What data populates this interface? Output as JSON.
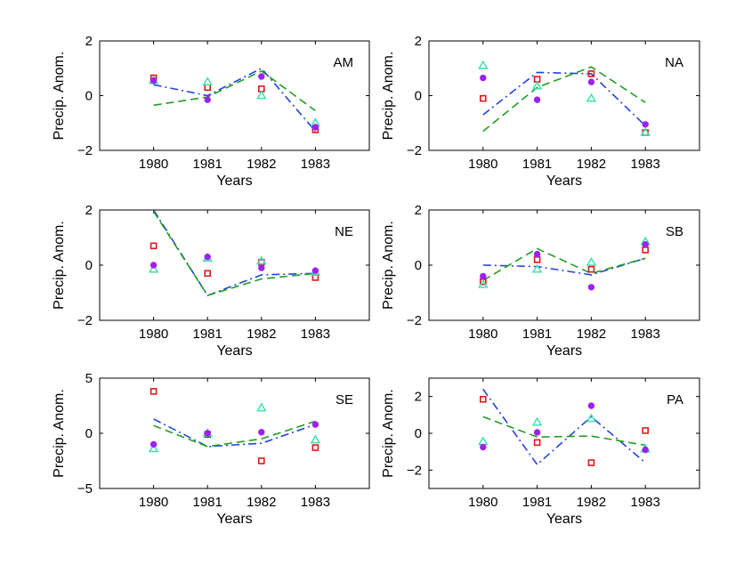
{
  "colors": {
    "square": "#e0181b",
    "triangle": "#40e0b0",
    "circle": "#a020f0",
    "dashdot": "#2244dd",
    "dashed": "#20a020"
  },
  "chart_data": [
    {
      "type": "scatter",
      "region": "AM",
      "xlabel": "Years",
      "ylabel": "Precip. Anom.",
      "xlim": [
        1979.0,
        1984.0
      ],
      "ylim": [
        -2,
        2
      ],
      "xticks": [
        1980,
        1981,
        1982,
        1983
      ],
      "yticks": [
        -2,
        0,
        2
      ],
      "series": [
        {
          "marker": "square",
          "x": [
            1980,
            1981,
            1982,
            1983
          ],
          "values": [
            0.65,
            0.3,
            0.25,
            -1.25
          ]
        },
        {
          "marker": "triangle",
          "x": [
            1980,
            1981,
            1982,
            1983
          ],
          "values": [
            0.55,
            0.5,
            0.0,
            -1.0
          ]
        },
        {
          "marker": "circle",
          "x": [
            1980,
            1981,
            1982,
            1983
          ],
          "values": [
            0.55,
            -0.15,
            0.7,
            -1.15
          ]
        },
        {
          "line": "dashdot",
          "x": [
            1980,
            1981,
            1982,
            1983
          ],
          "values": [
            0.4,
            0.0,
            1.0,
            -1.3
          ]
        },
        {
          "line": "dashed",
          "x": [
            1980,
            1981,
            1982,
            1983
          ],
          "values": [
            -0.35,
            -0.05,
            0.9,
            -0.55
          ]
        }
      ]
    },
    {
      "type": "scatter",
      "region": "NA",
      "xlabel": "Years",
      "ylabel": "Precip. Anom.",
      "xlim": [
        1979.0,
        1984.0
      ],
      "ylim": [
        -2,
        2
      ],
      "xticks": [
        1980,
        1981,
        1982,
        1983
      ],
      "yticks": [
        -2,
        0,
        2
      ],
      "series": [
        {
          "marker": "square",
          "x": [
            1980,
            1981,
            1982,
            1983
          ],
          "values": [
            -0.1,
            0.6,
            0.8,
            -1.35
          ]
        },
        {
          "marker": "triangle",
          "x": [
            1980,
            1981,
            1982,
            1983
          ],
          "values": [
            1.1,
            0.35,
            -0.1,
            -1.35
          ]
        },
        {
          "marker": "circle",
          "x": [
            1980,
            1981,
            1982,
            1983
          ],
          "values": [
            0.65,
            -0.15,
            0.5,
            -1.05
          ]
        },
        {
          "line": "dashdot",
          "x": [
            1980,
            1981,
            1982,
            1983
          ],
          "values": [
            -0.7,
            0.85,
            0.8,
            -1.1
          ]
        },
        {
          "line": "dashed",
          "x": [
            1980,
            1981,
            1982,
            1983
          ],
          "values": [
            -1.3,
            0.3,
            1.05,
            -0.25
          ]
        }
      ]
    },
    {
      "type": "scatter",
      "region": "NE",
      "xlabel": "Years",
      "ylabel": "Precip. Anom.",
      "xlim": [
        1979.0,
        1984.0
      ],
      "ylim": [
        -2,
        2
      ],
      "xticks": [
        1980,
        1981,
        1982,
        1983
      ],
      "yticks": [
        -2,
        0,
        2
      ],
      "series": [
        {
          "marker": "square",
          "x": [
            1980,
            1981,
            1982,
            1983
          ],
          "values": [
            0.7,
            -0.3,
            0.1,
            -0.45
          ]
        },
        {
          "marker": "triangle",
          "x": [
            1980,
            1981,
            1982,
            1983
          ],
          "values": [
            -0.15,
            0.25,
            0.15,
            -0.25
          ]
        },
        {
          "marker": "circle",
          "x": [
            1980,
            1981,
            1982,
            1983
          ],
          "values": [
            0.0,
            0.3,
            -0.1,
            -0.2
          ]
        },
        {
          "line": "dashdot",
          "x": [
            1980,
            1981,
            1982,
            1983
          ],
          "values": [
            2.0,
            -1.1,
            -0.35,
            -0.3
          ]
        },
        {
          "line": "dashed",
          "x": [
            1980,
            1981,
            1982,
            1983
          ],
          "values": [
            1.95,
            -1.1,
            -0.5,
            -0.3
          ]
        }
      ]
    },
    {
      "type": "scatter",
      "region": "SB",
      "xlabel": "Years",
      "ylabel": "Precip. Anom.",
      "xlim": [
        1979.0,
        1984.0
      ],
      "ylim": [
        -2,
        2
      ],
      "xticks": [
        1980,
        1981,
        1982,
        1983
      ],
      "yticks": [
        -2,
        0,
        2
      ],
      "series": [
        {
          "marker": "square",
          "x": [
            1980,
            1981,
            1982,
            1983
          ],
          "values": [
            -0.6,
            0.2,
            -0.15,
            0.55
          ]
        },
        {
          "marker": "triangle",
          "x": [
            1980,
            1981,
            1982,
            1983
          ],
          "values": [
            -0.7,
            -0.15,
            0.1,
            0.85
          ]
        },
        {
          "marker": "circle",
          "x": [
            1980,
            1981,
            1982,
            1983
          ],
          "values": [
            -0.4,
            0.4,
            -0.8,
            0.75
          ]
        },
        {
          "line": "dashdot",
          "x": [
            1980,
            1981,
            1982,
            1983
          ],
          "values": [
            0.0,
            -0.05,
            -0.35,
            0.25
          ]
        },
        {
          "line": "dashed",
          "x": [
            1980,
            1981,
            1982,
            1983
          ],
          "values": [
            -0.55,
            0.6,
            -0.3,
            0.25
          ]
        }
      ]
    },
    {
      "type": "scatter",
      "region": "SE",
      "xlabel": "Years",
      "ylabel": "Precip. Anom.",
      "xlim": [
        1979.0,
        1984.0
      ],
      "ylim": [
        -5,
        5
      ],
      "xticks": [
        1980,
        1981,
        1982,
        1983
      ],
      "yticks": [
        -5,
        0,
        5
      ],
      "series": [
        {
          "marker": "square",
          "x": [
            1980,
            1981,
            1982,
            1983
          ],
          "values": [
            3.8,
            -0.1,
            -2.5,
            -1.3
          ]
        },
        {
          "marker": "triangle",
          "x": [
            1980,
            1981,
            1982,
            1983
          ],
          "values": [
            -1.4,
            0.0,
            2.3,
            -0.6
          ]
        },
        {
          "marker": "circle",
          "x": [
            1980,
            1981,
            1982,
            1983
          ],
          "values": [
            -1.0,
            0.0,
            0.1,
            0.8
          ]
        },
        {
          "line": "dashdot",
          "x": [
            1980,
            1981,
            1982,
            1983
          ],
          "values": [
            1.3,
            -1.2,
            -0.9,
            0.8
          ]
        },
        {
          "line": "dashed",
          "x": [
            1980,
            1981,
            1982,
            1983
          ],
          "values": [
            0.7,
            -1.2,
            -0.5,
            1.1
          ]
        }
      ]
    },
    {
      "type": "scatter",
      "region": "PA",
      "xlabel": "Years",
      "ylabel": "Precip. Anom.",
      "xlim": [
        1979.0,
        1984.0
      ],
      "ylim": [
        -3,
        3
      ],
      "xticks": [
        1980,
        1981,
        1982,
        1983
      ],
      "yticks": [
        -2,
        0,
        2
      ],
      "series": [
        {
          "marker": "square",
          "x": [
            1980,
            1981,
            1982,
            1983
          ],
          "values": [
            1.85,
            -0.5,
            -1.6,
            0.15
          ]
        },
        {
          "marker": "triangle",
          "x": [
            1980,
            1981,
            1982,
            1983
          ],
          "values": [
            -0.45,
            0.6,
            0.8,
            -0.85
          ]
        },
        {
          "marker": "circle",
          "x": [
            1980,
            1981,
            1982,
            1983
          ],
          "values": [
            -0.75,
            0.05,
            1.5,
            -0.9
          ]
        },
        {
          "line": "dashdot",
          "x": [
            1980,
            1981,
            1982,
            1983
          ],
          "values": [
            2.4,
            -1.7,
            0.9,
            -1.6
          ]
        },
        {
          "line": "dashed",
          "x": [
            1980,
            1981,
            1982,
            1983
          ],
          "values": [
            0.9,
            -0.2,
            -0.15,
            -0.65
          ]
        }
      ]
    }
  ]
}
